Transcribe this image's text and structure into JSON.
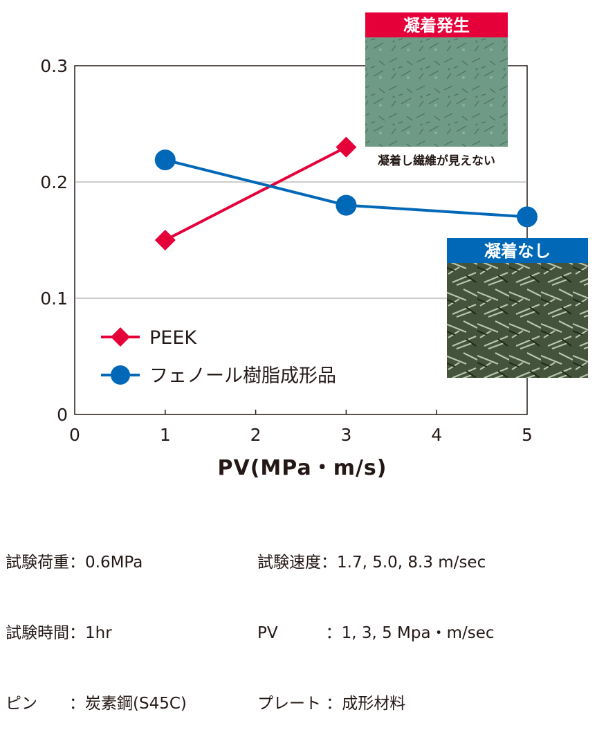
{
  "chart_data": {
    "type": "line",
    "xlabel": "PV(MPa・m/s)",
    "ylabel": "",
    "xlim": [
      0,
      5
    ],
    "ylim": [
      0,
      0.3
    ],
    "x_ticks": [
      "0",
      "1",
      "2",
      "3",
      "4",
      "5"
    ],
    "y_ticks": [
      "0",
      "0.1",
      "0.2",
      "0.3"
    ],
    "grid": "horizontal",
    "legend_position": "lower-left",
    "series": [
      {
        "name": "PEEK",
        "color": "#e60039",
        "marker": "diamond",
        "x": [
          1,
          3
        ],
        "y": [
          0.15,
          0.23
        ]
      },
      {
        "name": "フェノール樹脂成形品",
        "color": "#0068b7",
        "marker": "circle",
        "x": [
          1,
          3,
          5
        ],
        "y": [
          0.219,
          0.18,
          0.17
        ]
      }
    ],
    "annotations": [
      {
        "badge": "凝着発生",
        "badge_color": "#e60039",
        "caption": "凝着し繊維が見えない",
        "image": "micrograph-smooth"
      },
      {
        "badge": "凝着なし",
        "badge_color": "#0068b7",
        "caption": "",
        "image": "micrograph-fibers"
      }
    ]
  },
  "conditions": {
    "left": [
      "試験荷重：0.6MPa",
      "試験時間：1hr",
      "ピン　　：炭素鋼(S45C)"
    ],
    "right": [
      "試験速度：1.7, 5.0, 8.3 m/sec",
      "PV　　　：1, 3, 5 Mpa・m/sec",
      "プレート ：成形材料"
    ]
  }
}
